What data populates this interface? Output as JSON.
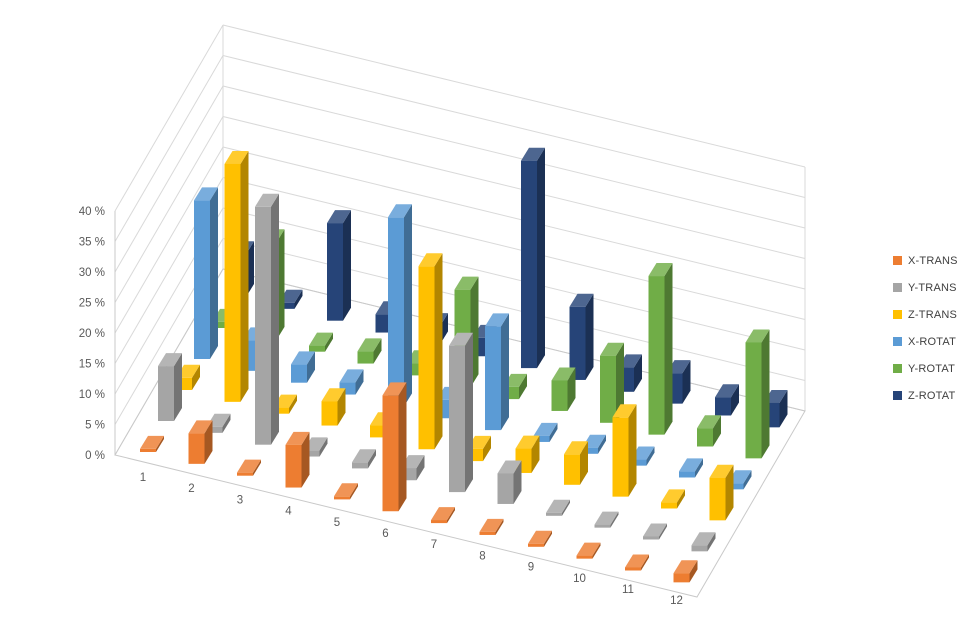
{
  "chart_data": {
    "type": "bar",
    "subtype": "3d-column",
    "title": "",
    "unit": "percent",
    "categories": [
      "1",
      "2",
      "3",
      "4",
      "5",
      "6",
      "7",
      "8",
      "9",
      "10",
      "11",
      "12"
    ],
    "y_axis": {
      "min": 0,
      "max": 40,
      "step": 5,
      "tick_labels": [
        "0 %",
        "5 %",
        "10 %",
        "15 %",
        "20 %",
        "25 %",
        "30 %",
        "35 %",
        "40 %"
      ]
    },
    "grid": true,
    "legend_position": "right",
    "series": [
      {
        "name": "X-TRANS",
        "color": "#ED7D31",
        "values": [
          0.5,
          5,
          0.5,
          7,
          0.5,
          19,
          0.5,
          0.5,
          0.5,
          0.5,
          0.5,
          1.5
        ]
      },
      {
        "name": "Y-TRANS",
        "color": "#A5A5A5",
        "values": [
          9,
          1,
          39,
          1,
          1,
          2,
          24,
          5,
          0.5,
          0.5,
          0.5,
          1
        ]
      },
      {
        "name": "Z-TRANS",
        "color": "#FFC000",
        "values": [
          2,
          39,
          1,
          4,
          2,
          30,
          2,
          4,
          5,
          13,
          1,
          7
        ]
      },
      {
        "name": "X-ROTAT",
        "color": "#5B9BD5",
        "values": [
          26,
          5,
          3,
          2,
          31,
          3,
          17,
          1,
          1,
          1,
          1,
          1
        ]
      },
      {
        "name": "Y-ROTAT",
        "color": "#70AD47",
        "values": [
          1,
          16,
          1,
          2,
          2,
          16,
          2,
          5,
          11,
          26,
          3,
          19
        ]
      },
      {
        "name": "Z-ROTAT",
        "color": "#264478",
        "values": [
          7,
          1,
          16,
          3,
          3,
          3,
          34,
          12,
          4,
          5,
          3,
          4
        ]
      }
    ],
    "colors": {
      "gridline": "#D9D9D9",
      "wall_edge": "#C9C9C9",
      "axis_text": "#595959",
      "legend_text": "#404040",
      "background": "#FFFFFF"
    }
  }
}
